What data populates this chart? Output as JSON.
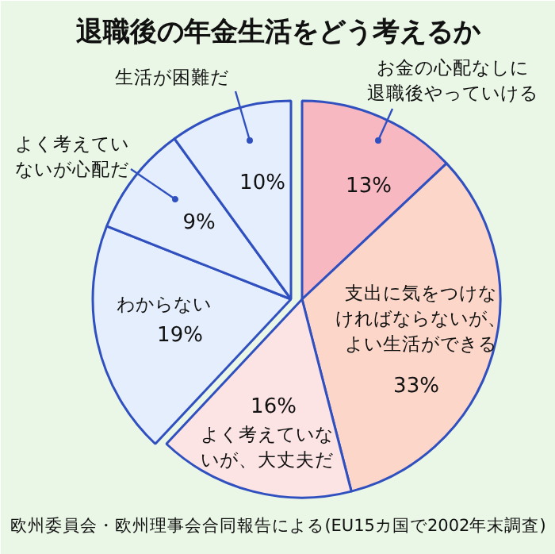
{
  "chart_data": {
    "type": "pie",
    "title": "退職後の年金生活をどう考えるか",
    "categories": [
      "お金の心配なしに退職後やっていける",
      "支出に気をつけなければならないが、よい生活ができる",
      "よく考えていないが、大丈夫だ",
      "わからない",
      "よく考えていないが心配だ",
      "生活が困難だ"
    ],
    "values": [
      13,
      33,
      16,
      19,
      9,
      10
    ],
    "value_labels": [
      "13%",
      "33%",
      "16%",
      "19%",
      "9%",
      "10%"
    ],
    "colors": [
      "#f7b8c2",
      "#fcd6c8",
      "#fde4e4",
      "#e4eefc",
      "#e4eefc",
      "#e4eefc"
    ],
    "annotations": [
      "欧州委員会・欧州理事会合同報告による(EU15カ国で2002年末調査)"
    ]
  }
}
